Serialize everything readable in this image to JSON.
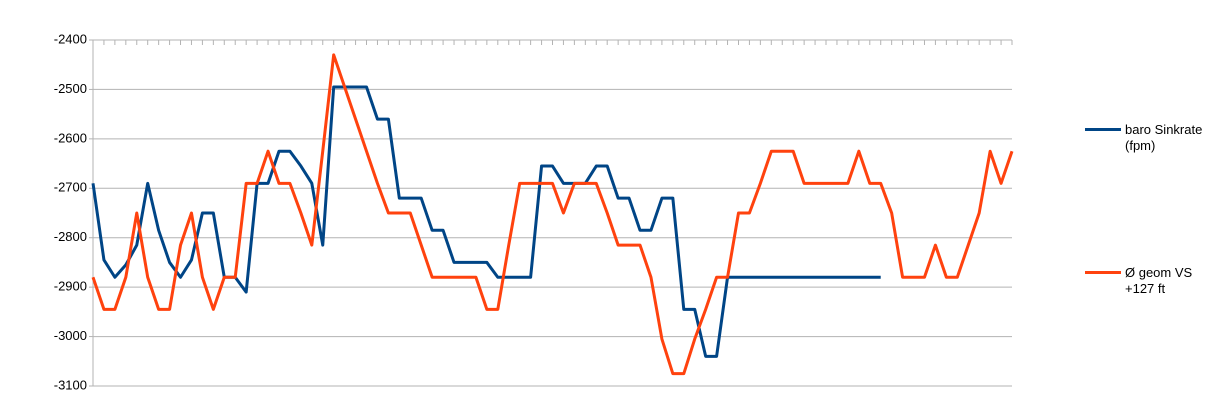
{
  "chart_data": {
    "type": "line",
    "categories": [
      null,
      null,
      null,
      null,
      null,
      null,
      null,
      null,
      null,
      null,
      null,
      null,
      null,
      null,
      null,
      null,
      null,
      null,
      null,
      null,
      null,
      null,
      null,
      null,
      null,
      null,
      null,
      null,
      null,
      null,
      null,
      null,
      null,
      null,
      null,
      null,
      null,
      null,
      null,
      null,
      null,
      null,
      null,
      null,
      null,
      null,
      null,
      null,
      null,
      null,
      null,
      null,
      null,
      null,
      null,
      null,
      null,
      null,
      null,
      null,
      null,
      null,
      null,
      null,
      null,
      null,
      null,
      null,
      null,
      null,
      null,
      null,
      null,
      null,
      null,
      null,
      null,
      null,
      null,
      null,
      null,
      null,
      null,
      null,
      null
    ],
    "series": [
      {
        "name": "baro Sinkrate (fpm)",
        "color": "#004586",
        "values": [
          -2690,
          -2845,
          -2880,
          -2855,
          -2815,
          -2690,
          -2785,
          -2850,
          -2880,
          -2845,
          -2750,
          -2750,
          -2880,
          -2880,
          -2910,
          -2690,
          -2690,
          -2625,
          -2625,
          -2655,
          -2690,
          -2815,
          -2495,
          -2495,
          -2495,
          -2495,
          -2560,
          -2560,
          -2720,
          -2720,
          -2720,
          -2785,
          -2785,
          -2850,
          -2850,
          -2850,
          -2850,
          -2880,
          -2880,
          -2880,
          -2880,
          -2655,
          -2655,
          -2690,
          -2690,
          -2690,
          -2655,
          -2655,
          -2720,
          -2720,
          -2785,
          -2785,
          -2720,
          -2720,
          -2945,
          -2945,
          -3040,
          -3040,
          -2880,
          -2880,
          -2880,
          -2880,
          -2880,
          -2880,
          -2880,
          -2880,
          -2880,
          -2880,
          -2880,
          -2880,
          -2880,
          -2880,
          -2880,
          null,
          null,
          null,
          null,
          null,
          null,
          null,
          null,
          null,
          null,
          null,
          null
        ]
      },
      {
        "name": "Ø geom VS +127 ft",
        "color": "#ff420e",
        "values": [
          -2880,
          -2945,
          -2945,
          -2880,
          -2750,
          -2880,
          -2945,
          -2945,
          -2815,
          -2750,
          -2880,
          -2945,
          -2880,
          -2880,
          -2690,
          -2690,
          -2625,
          -2690,
          -2690,
          -2750,
          -2815,
          -2625,
          -2430,
          -2495,
          -2560,
          -2625,
          -2690,
          -2750,
          -2750,
          -2750,
          -2815,
          -2880,
          -2880,
          -2880,
          -2880,
          -2880,
          -2945,
          -2945,
          -2815,
          -2690,
          -2690,
          -2690,
          -2690,
          -2750,
          -2690,
          -2690,
          -2690,
          -2750,
          -2815,
          -2815,
          -2815,
          -2880,
          -3005,
          -3075,
          -3075,
          -3005,
          -2945,
          -2880,
          -2880,
          -2750,
          -2750,
          -2690,
          -2625,
          -2625,
          -2625,
          -2690,
          -2690,
          -2690,
          -2690,
          -2690,
          -2625,
          -2690,
          -2690,
          -2750,
          -2880,
          -2880,
          -2880,
          -2815,
          -2880,
          -2880,
          -2815,
          -2750,
          -2625,
          -2690,
          -2625
        ]
      }
    ],
    "ylim": [
      -3100,
      -2400
    ],
    "yticks": [
      -2400,
      -2500,
      -2600,
      -2700,
      -2800,
      -2900,
      -3000,
      -3100
    ],
    "grid": true
  }
}
